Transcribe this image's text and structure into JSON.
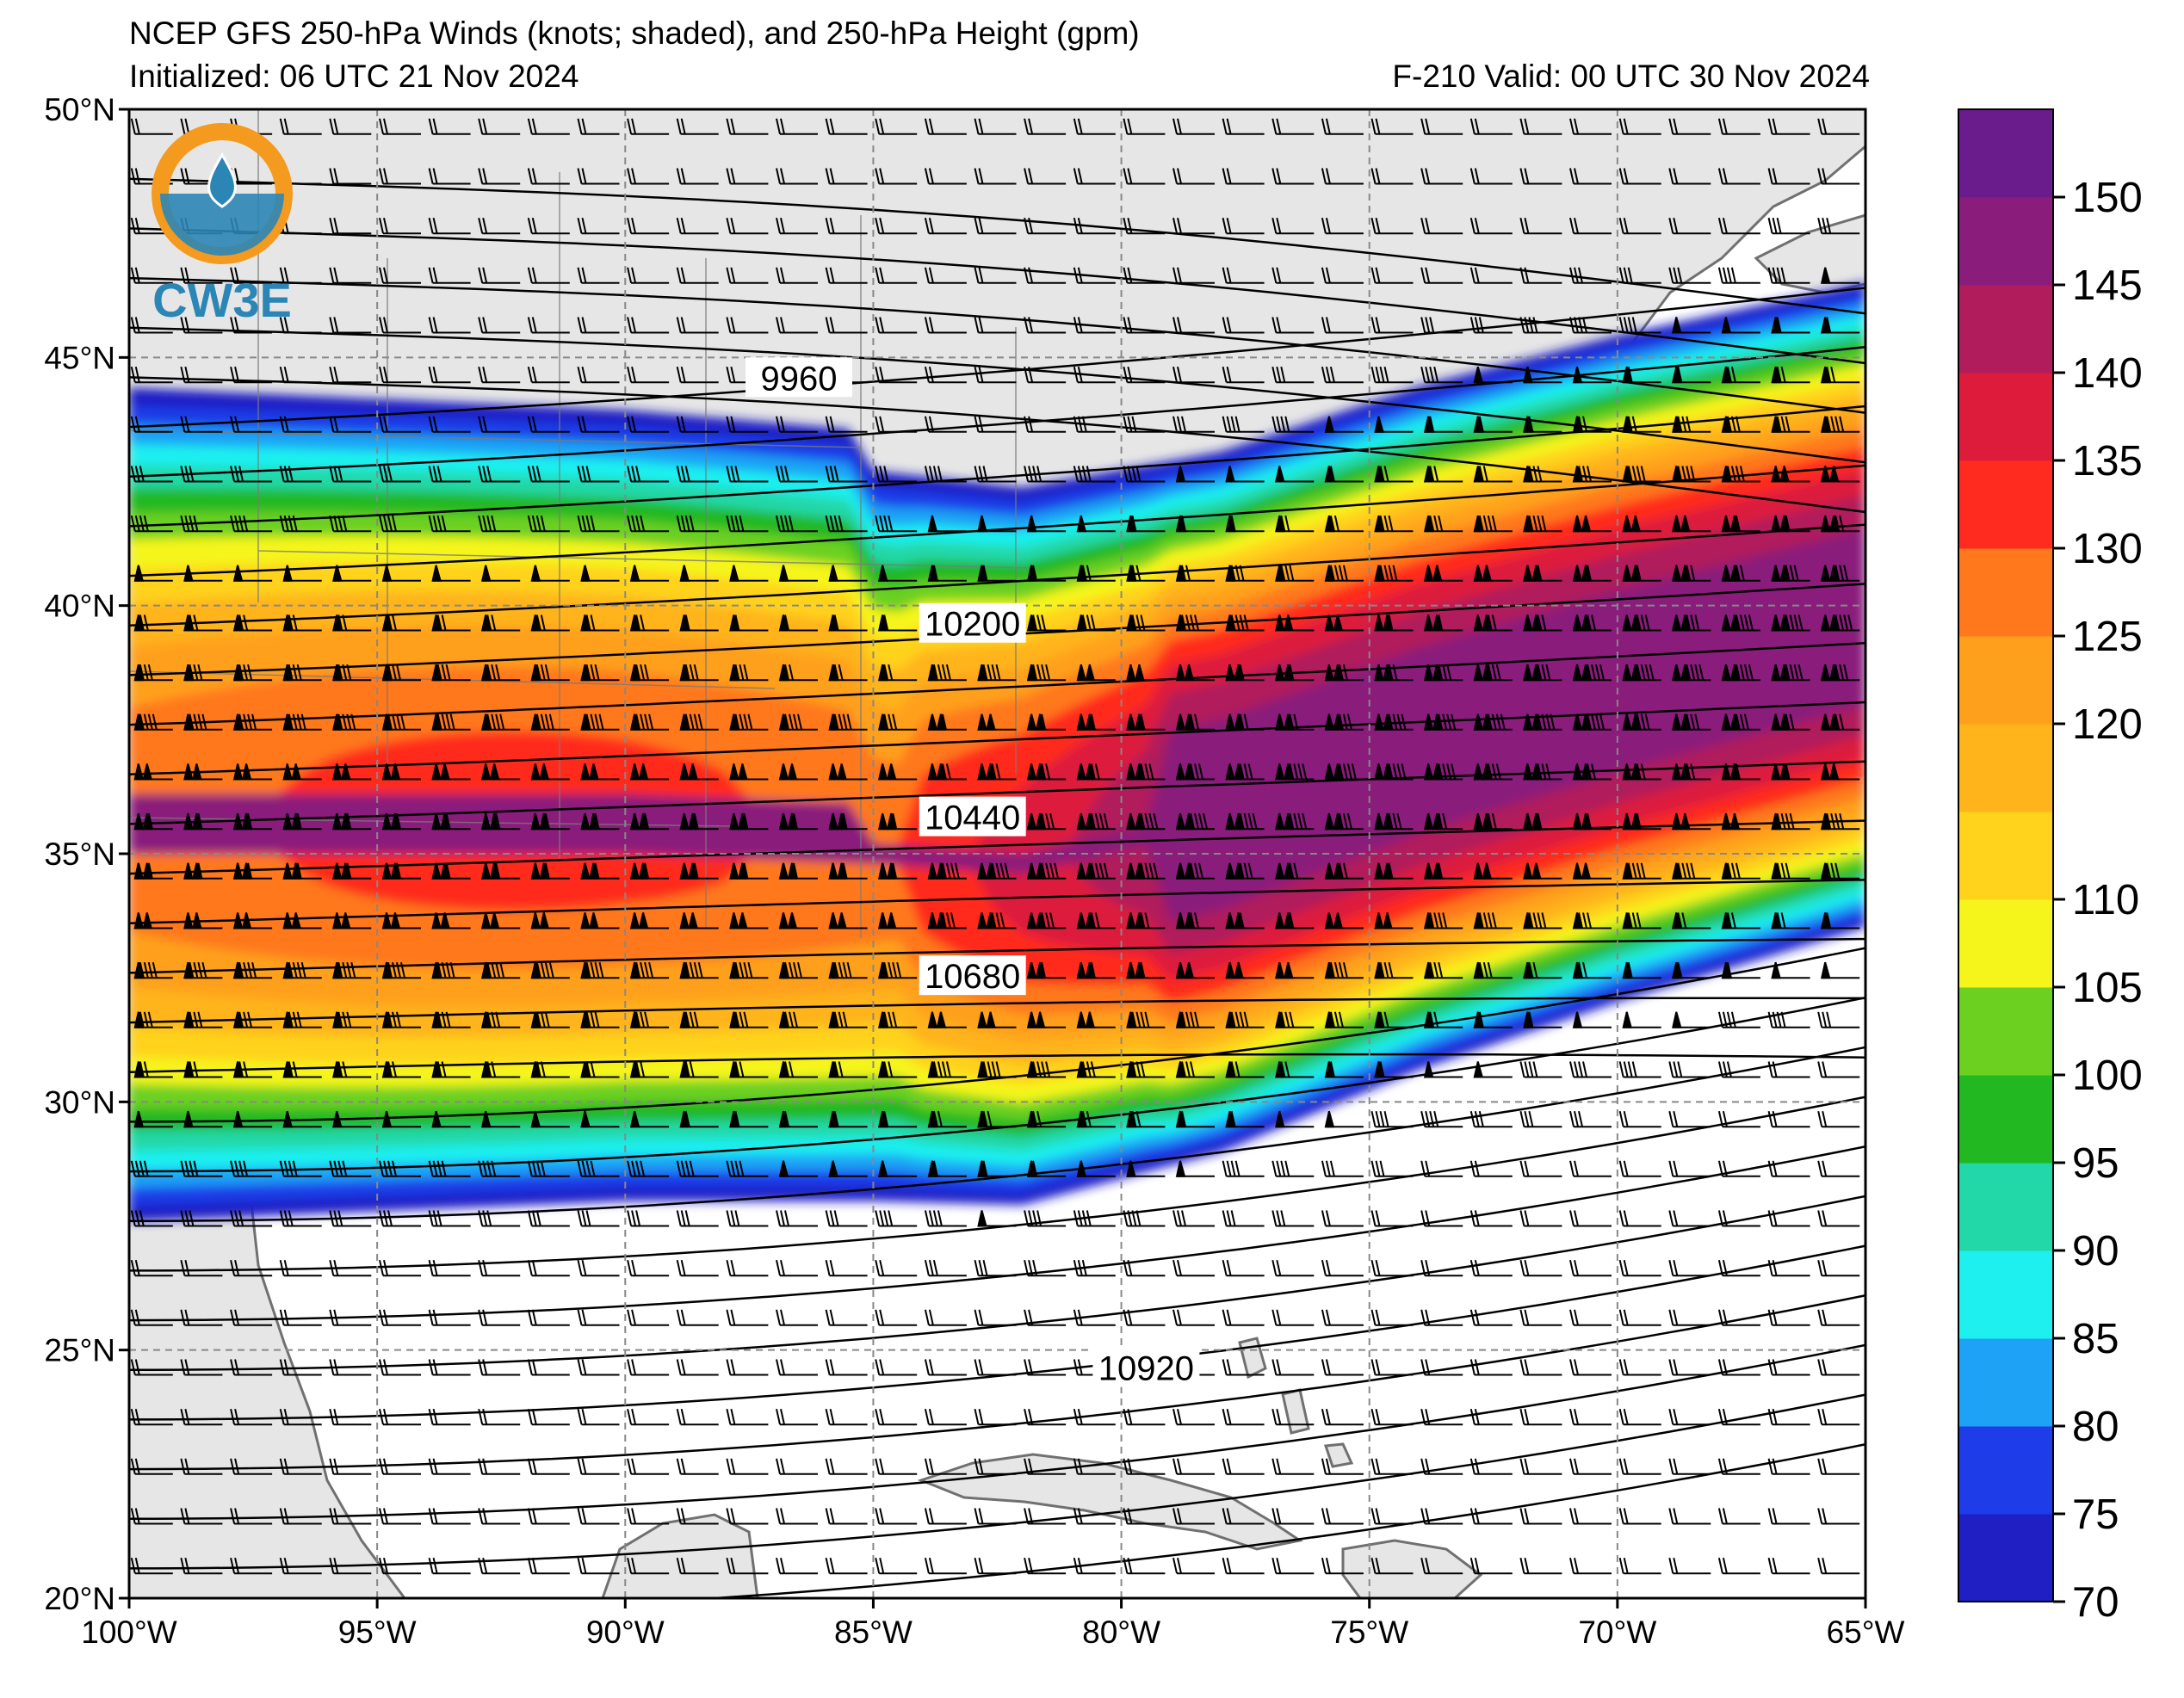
{
  "header": {
    "title": "NCEP GFS 250-hPa Winds (knots; shaded), and 250-hPa Height (gpm)",
    "initialized": "Initialized: 06 UTC 21 Nov 2024",
    "valid": "F-210  Valid: 00 UTC 30 Nov 2024"
  },
  "logo": {
    "text": "CW3E",
    "colors": {
      "ring": "#f39a1f",
      "drop": "#2b86b6"
    }
  },
  "map": {
    "lon_range": [
      -100,
      -65
    ],
    "lat_range": [
      20,
      50
    ],
    "lon_ticks": [
      {
        "value": -100,
        "label": "100°W"
      },
      {
        "value": -95,
        "label": "95°W"
      },
      {
        "value": -90,
        "label": "90°W"
      },
      {
        "value": -85,
        "label": "85°W"
      },
      {
        "value": -80,
        "label": "80°W"
      },
      {
        "value": -75,
        "label": "75°W"
      },
      {
        "value": -70,
        "label": "70°W"
      },
      {
        "value": -65,
        "label": "65°W"
      }
    ],
    "lat_ticks": [
      {
        "value": 50,
        "label": "50°N"
      },
      {
        "value": 45,
        "label": "45°N"
      },
      {
        "value": 40,
        "label": "40°N"
      },
      {
        "value": 35,
        "label": "35°N"
      },
      {
        "value": 30,
        "label": "30°N"
      },
      {
        "value": 25,
        "label": "25°N"
      },
      {
        "value": 20,
        "label": "20°N"
      }
    ],
    "land_color": "#e6e6e6",
    "ocean_color": "#ffffff",
    "coast_color": "#707070",
    "gridlines": "dashed"
  },
  "colorbar": {
    "levels": [
      70,
      75,
      80,
      85,
      90,
      95,
      100,
      105,
      110,
      115,
      120,
      125,
      130,
      135,
      140,
      145,
      150,
      155
    ],
    "labels": [
      "70",
      "75",
      "80",
      "85",
      "90",
      "95",
      "100",
      "105",
      "110",
      "120",
      "125",
      "130",
      "135",
      "140",
      "145",
      "150"
    ],
    "colors": [
      "#1f1fc4",
      "#1e3ce8",
      "#1ea2f5",
      "#1ef0f0",
      "#22d8a8",
      "#22b822",
      "#6cd020",
      "#f5f51c",
      "#ffd21c",
      "#ffb41c",
      "#ffa01c",
      "#ff781c",
      "#ff2b1f",
      "#dd1c3c",
      "#b01c5c",
      "#8a1c7c",
      "#6a1c8c"
    ]
  },
  "contours": [
    {
      "value": 9960,
      "label": "9960"
    },
    {
      "value": 10200,
      "label": "10200"
    },
    {
      "value": 10440,
      "label": "10440"
    },
    {
      "value": 10680,
      "label": "10680"
    },
    {
      "value": 10920,
      "label": "10920"
    }
  ],
  "jet": {
    "axis": [
      [
        -100,
        35
      ],
      [
        -90,
        35
      ],
      [
        -85,
        34.8
      ],
      [
        -82,
        34.6
      ],
      [
        -78,
        35.5
      ],
      [
        -74,
        37
      ],
      [
        -70,
        38.2
      ],
      [
        -65,
        39.5
      ]
    ],
    "core_speed_kt": 150
  }
}
